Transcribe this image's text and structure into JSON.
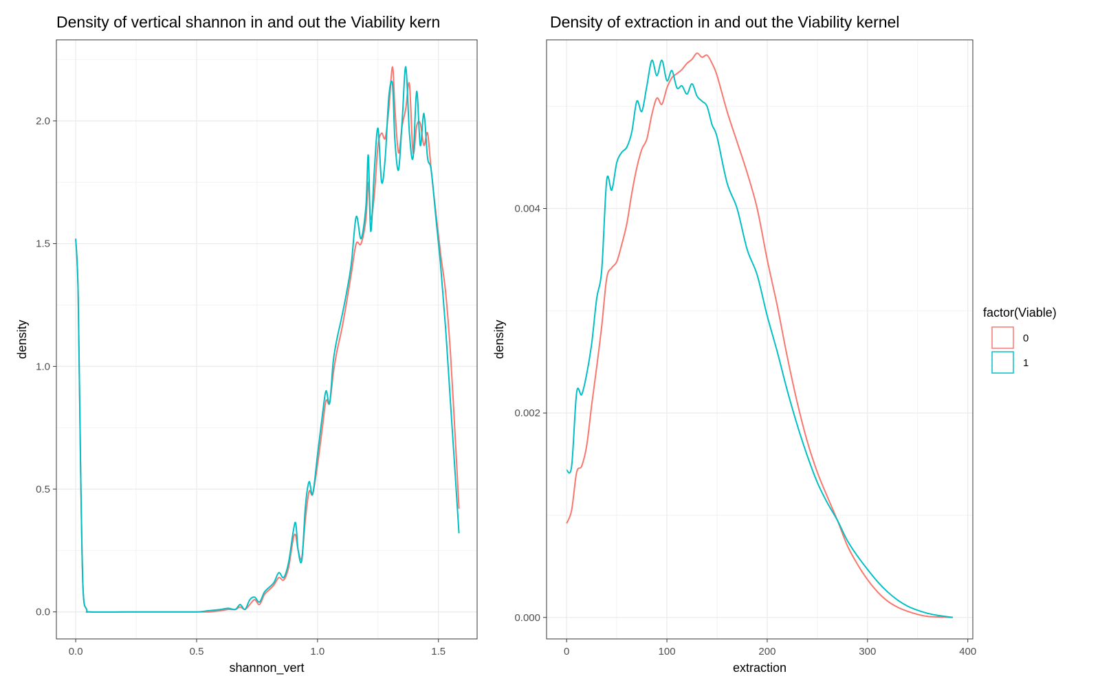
{
  "charts": [
    {
      "title": "Density of vertical shannon in and out the Viability kern",
      "xlabel": "shannon_vert",
      "ylabel": "density",
      "xticks": [
        "0.0",
        "0.5",
        "1.0",
        "1.5"
      ],
      "yticks": [
        "0.0",
        "0.5",
        "1.0",
        "1.5",
        "2.0"
      ]
    },
    {
      "title": "Density of extraction in and out the Viability kernel",
      "xlabel": "extraction",
      "ylabel": "density",
      "xticks": [
        "0",
        "100",
        "200",
        "300",
        "400"
      ],
      "yticks": [
        "0.000",
        "0.002",
        "0.004"
      ]
    }
  ],
  "legend": {
    "title": "factor(Viable)",
    "items": [
      {
        "label": "0",
        "color": "#F8766D"
      },
      {
        "label": "1",
        "color": "#00BFC4"
      }
    ]
  },
  "chart_data": [
    {
      "type": "line",
      "title": "Density of vertical shannon in and out the Viability kern",
      "xlabel": "shannon_vert",
      "ylabel": "density",
      "xlim": [
        -0.08,
        1.66
      ],
      "ylim": [
        -0.11,
        2.33
      ],
      "xticks": [
        0,
        0.5,
        1.0,
        1.5
      ],
      "yticks": [
        0,
        0.5,
        1.0,
        1.5,
        2.0
      ],
      "grid": true,
      "legend_position": "right",
      "series": [
        {
          "name": "0",
          "color": "#F8766D",
          "x": [
            0,
            0.01,
            0.02,
            0.03,
            0.045,
            0.06,
            0.2,
            0.4,
            0.5,
            0.55,
            0.6,
            0.63,
            0.66,
            0.68,
            0.7,
            0.72,
            0.74,
            0.76,
            0.78,
            0.8,
            0.82,
            0.84,
            0.86,
            0.88,
            0.9,
            0.91,
            0.92,
            0.935,
            0.95,
            0.965,
            0.98,
            1.0,
            1.02,
            1.035,
            1.05,
            1.065,
            1.08,
            1.1,
            1.12,
            1.14,
            1.16,
            1.18,
            1.2,
            1.21,
            1.22,
            1.235,
            1.25,
            1.265,
            1.28,
            1.295,
            1.31,
            1.32,
            1.335,
            1.35,
            1.365,
            1.38,
            1.395,
            1.41,
            1.425,
            1.44,
            1.455,
            1.47,
            1.49,
            1.51,
            1.53,
            1.55,
            1.57,
            1.585
          ],
          "y": [
            1.52,
            1.3,
            0.6,
            0.1,
            0.01,
            0.0,
            0.0,
            0.0,
            0.0,
            0.0,
            0.005,
            0.01,
            0.01,
            0.02,
            0.01,
            0.03,
            0.05,
            0.03,
            0.07,
            0.09,
            0.11,
            0.14,
            0.13,
            0.18,
            0.3,
            0.31,
            0.25,
            0.22,
            0.38,
            0.49,
            0.48,
            0.6,
            0.75,
            0.86,
            0.85,
            0.97,
            1.06,
            1.15,
            1.26,
            1.38,
            1.5,
            1.5,
            1.6,
            1.75,
            1.6,
            1.7,
            1.9,
            1.95,
            1.93,
            2.05,
            2.22,
            2.05,
            1.87,
            1.98,
            2.05,
            2.15,
            1.87,
            1.98,
            1.99,
            1.9,
            1.95,
            1.8,
            1.62,
            1.45,
            1.3,
            1.05,
            0.7,
            0.42
          ]
        },
        {
          "name": "1",
          "color": "#00BFC4",
          "x": [
            0,
            0.01,
            0.02,
            0.03,
            0.045,
            0.06,
            0.2,
            0.4,
            0.5,
            0.55,
            0.6,
            0.63,
            0.66,
            0.68,
            0.7,
            0.72,
            0.74,
            0.76,
            0.78,
            0.8,
            0.82,
            0.84,
            0.86,
            0.88,
            0.9,
            0.91,
            0.92,
            0.935,
            0.95,
            0.965,
            0.98,
            1.0,
            1.02,
            1.035,
            1.05,
            1.065,
            1.08,
            1.1,
            1.12,
            1.14,
            1.16,
            1.18,
            1.2,
            1.21,
            1.22,
            1.235,
            1.25,
            1.265,
            1.28,
            1.295,
            1.31,
            1.32,
            1.335,
            1.35,
            1.365,
            1.38,
            1.395,
            1.41,
            1.425,
            1.44,
            1.455,
            1.47,
            1.49,
            1.51,
            1.53,
            1.55,
            1.57,
            1.585
          ],
          "y": [
            1.52,
            1.3,
            0.6,
            0.1,
            0.01,
            0.0,
            0.0,
            0.0,
            0.0,
            0.005,
            0.01,
            0.015,
            0.01,
            0.03,
            0.01,
            0.05,
            0.06,
            0.04,
            0.08,
            0.1,
            0.12,
            0.16,
            0.14,
            0.2,
            0.33,
            0.36,
            0.25,
            0.21,
            0.43,
            0.53,
            0.48,
            0.64,
            0.8,
            0.9,
            0.85,
            1.02,
            1.11,
            1.2,
            1.3,
            1.42,
            1.61,
            1.52,
            1.65,
            1.86,
            1.55,
            1.8,
            1.97,
            1.75,
            1.85,
            2.1,
            2.15,
            1.92,
            1.8,
            2.0,
            2.22,
            1.95,
            1.85,
            2.12,
            1.9,
            2.03,
            1.85,
            1.8,
            1.6,
            1.4,
            1.15,
            0.85,
            0.55,
            0.32
          ]
        }
      ]
    },
    {
      "type": "line",
      "title": "Density of extraction in and out the Viability kernel",
      "xlabel": "extraction",
      "ylabel": "density",
      "xlim": [
        -20,
        405
      ],
      "ylim": [
        -0.00021,
        0.00565
      ],
      "xticks": [
        0,
        100,
        200,
        300,
        400
      ],
      "yticks": [
        0,
        0.002,
        0.004
      ],
      "grid": true,
      "legend_position": "right",
      "series": [
        {
          "name": "0",
          "color": "#F8766D",
          "x": [
            0,
            5,
            10,
            15,
            20,
            25,
            30,
            35,
            40,
            45,
            50,
            55,
            60,
            65,
            70,
            75,
            80,
            85,
            90,
            95,
            100,
            105,
            110,
            115,
            120,
            125,
            130,
            135,
            140,
            145,
            150,
            160,
            170,
            180,
            190,
            200,
            210,
            220,
            230,
            240,
            250,
            260,
            270,
            280,
            290,
            300,
            310,
            320,
            330,
            340,
            350,
            360,
            370,
            385
          ],
          "y": [
            0.00092,
            0.00105,
            0.00142,
            0.00148,
            0.00168,
            0.00208,
            0.00245,
            0.00285,
            0.00332,
            0.00342,
            0.00348,
            0.00365,
            0.00385,
            0.00415,
            0.0044,
            0.00458,
            0.00468,
            0.00492,
            0.00508,
            0.00502,
            0.00518,
            0.00528,
            0.00532,
            0.00536,
            0.00542,
            0.00546,
            0.00552,
            0.00548,
            0.0055,
            0.00542,
            0.0053,
            0.00495,
            0.00465,
            0.00435,
            0.004,
            0.0035,
            0.00305,
            0.00255,
            0.0021,
            0.00172,
            0.00142,
            0.00118,
            0.00095,
            0.0007,
            0.00052,
            0.00037,
            0.00025,
            0.00016,
            0.0001,
            6e-05,
            3e-05,
            1e-05,
            5e-06,
            0.0
          ]
        },
        {
          "name": "1",
          "color": "#00BFC4",
          "x": [
            0,
            5,
            10,
            15,
            20,
            25,
            30,
            35,
            40,
            45,
            50,
            55,
            60,
            65,
            70,
            75,
            80,
            85,
            90,
            95,
            100,
            105,
            110,
            115,
            120,
            125,
            130,
            135,
            140,
            145,
            150,
            160,
            170,
            180,
            190,
            200,
            210,
            220,
            230,
            240,
            250,
            260,
            270,
            280,
            290,
            300,
            310,
            320,
            330,
            340,
            350,
            360,
            370,
            385
          ],
          "y": [
            0.00144,
            0.00148,
            0.0022,
            0.00218,
            0.00238,
            0.00268,
            0.00312,
            0.0034,
            0.00428,
            0.00418,
            0.00445,
            0.00455,
            0.0046,
            0.00475,
            0.00505,
            0.00495,
            0.0052,
            0.00545,
            0.0053,
            0.00545,
            0.00525,
            0.00535,
            0.00518,
            0.0052,
            0.00512,
            0.00522,
            0.0051,
            0.00505,
            0.005,
            0.00482,
            0.0047,
            0.00425,
            0.004,
            0.0036,
            0.00335,
            0.00295,
            0.0026,
            0.00222,
            0.00188,
            0.00158,
            0.00132,
            0.00112,
            0.00095,
            0.00075,
            0.0006,
            0.00047,
            0.00035,
            0.00025,
            0.00017,
            0.00011,
            7e-05,
            4e-05,
            2e-05,
            0.0
          ]
        }
      ]
    }
  ]
}
